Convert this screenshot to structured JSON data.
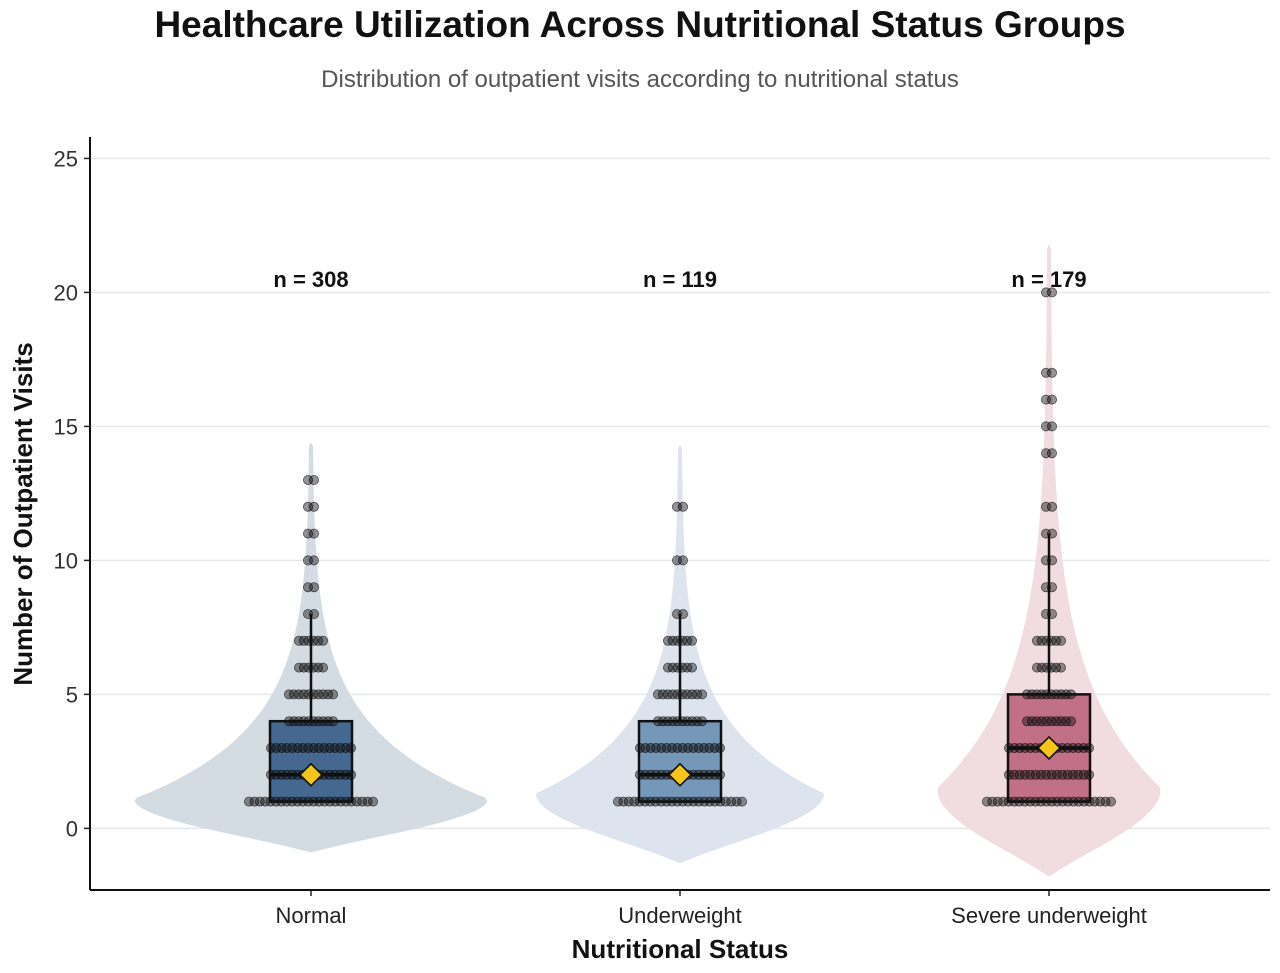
{
  "chart_data": {
    "type": "violin",
    "title": "Healthcare Utilization Across Nutritional Status Groups",
    "subtitle": "Distribution of outpatient visits according to nutritional status",
    "xlabel": "Nutritional Status",
    "ylabel": "Number of Outpatient Visits",
    "ylim": [
      -2.3,
      25.8
    ],
    "yticks": [
      0,
      5,
      10,
      15,
      20,
      25
    ],
    "grid": "horizontal",
    "legend": "none",
    "mean_marker_color": "#f5c518",
    "categories": [
      "Normal",
      "Underweight",
      "Severe underweight"
    ],
    "groups": [
      {
        "category": "Normal",
        "n_label": "n = 308",
        "box_color": "#44688f",
        "violin_color": "#d3dbe3",
        "box": {
          "q1": 1,
          "median": 2,
          "q3": 4,
          "whisker_low": 1,
          "whisker_high": 8
        },
        "mean": 2.0,
        "violin_range": [
          -0.9,
          14.4
        ],
        "violin_peak_y": 1.1,
        "point_values": [
          1,
          2,
          3,
          4,
          5,
          6,
          7,
          8,
          9,
          10,
          11,
          12,
          13
        ]
      },
      {
        "category": "Underweight",
        "n_label": "n = 119",
        "box_color": "#7598b9",
        "violin_color": "#dde4ed",
        "box": {
          "q1": 1,
          "median": 2,
          "q3": 4,
          "whisker_low": 1,
          "whisker_high": 8
        },
        "mean": 2.0,
        "violin_range": [
          -1.3,
          14.3
        ],
        "violin_peak_y": 1.3,
        "point_values": [
          1,
          2,
          3,
          4,
          5,
          6,
          7,
          8,
          10,
          12
        ]
      },
      {
        "category": "Severe underweight",
        "n_label": "n = 179",
        "box_color": "#c27088",
        "violin_color": "#f1dce2",
        "box": {
          "q1": 1,
          "median": 3,
          "q3": 5,
          "whisker_low": 1,
          "whisker_high": 11
        },
        "mean": 3.0,
        "violin_range": [
          -1.8,
          21.8
        ],
        "violin_peak_y": 1.5,
        "point_values": [
          1,
          2,
          3,
          4,
          5,
          6,
          7,
          8,
          9,
          10,
          11,
          12,
          14,
          15,
          16,
          17,
          20
        ]
      }
    ]
  }
}
